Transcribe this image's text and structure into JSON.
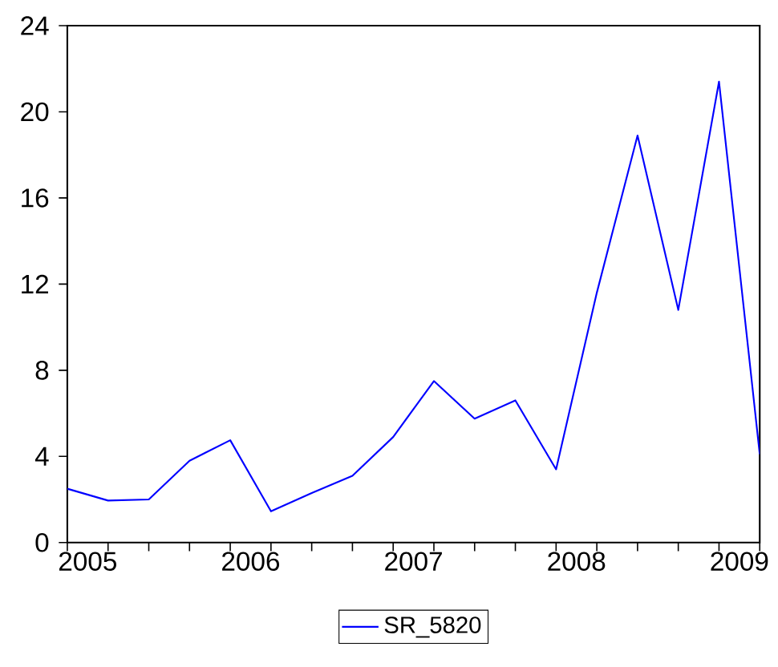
{
  "chart_data": {
    "type": "line",
    "x": [
      2005,
      2005.25,
      2005.5,
      2005.75,
      2006,
      2006.25,
      2006.5,
      2006.75,
      2007,
      2007.25,
      2007.5,
      2007.75,
      2008,
      2008.25,
      2008.5,
      2008.75,
      2009,
      2009.25
    ],
    "series": [
      {
        "name": "SR_5820",
        "color": "#0000ff",
        "values": [
          2.5,
          1.95,
          2.0,
          3.8,
          4.75,
          1.45,
          2.3,
          3.1,
          4.9,
          7.5,
          5.75,
          6.6,
          3.4,
          11.6,
          18.9,
          10.8,
          21.4,
          4.1
        ]
      }
    ],
    "xlim": [
      2005,
      2009.25
    ],
    "xticks": [
      {
        "value": 2005.125,
        "label": "2005"
      },
      {
        "value": 2006.125,
        "label": "2006"
      },
      {
        "value": 2007.125,
        "label": "2007"
      },
      {
        "value": 2008.125,
        "label": "2008"
      },
      {
        "value": 2009.125,
        "label": "2009"
      },
      {
        "value": 2005,
        "label": null
      },
      {
        "value": 2005.25,
        "label": null
      },
      {
        "value": 2005.5,
        "label": null
      },
      {
        "value": 2005.75,
        "label": null
      },
      {
        "value": 2006,
        "label": null
      },
      {
        "value": 2006.25,
        "label": null
      },
      {
        "value": 2006.5,
        "label": null
      },
      {
        "value": 2006.75,
        "label": null
      },
      {
        "value": 2007,
        "label": null
      },
      {
        "value": 2007.25,
        "label": null
      },
      {
        "value": 2007.5,
        "label": null
      },
      {
        "value": 2007.75,
        "label": null
      },
      {
        "value": 2008,
        "label": null
      },
      {
        "value": 2008.25,
        "label": null
      },
      {
        "value": 2008.5,
        "label": null
      },
      {
        "value": 2008.75,
        "label": null
      },
      {
        "value": 2009,
        "label": null
      },
      {
        "value": 2009.25,
        "label": null
      }
    ],
    "ylim": [
      0,
      24
    ],
    "yticks": [
      0,
      4,
      8,
      12,
      16,
      20,
      24
    ],
    "legend": "bottom",
    "grid": false,
    "line_style": "solid",
    "marker": "none"
  }
}
